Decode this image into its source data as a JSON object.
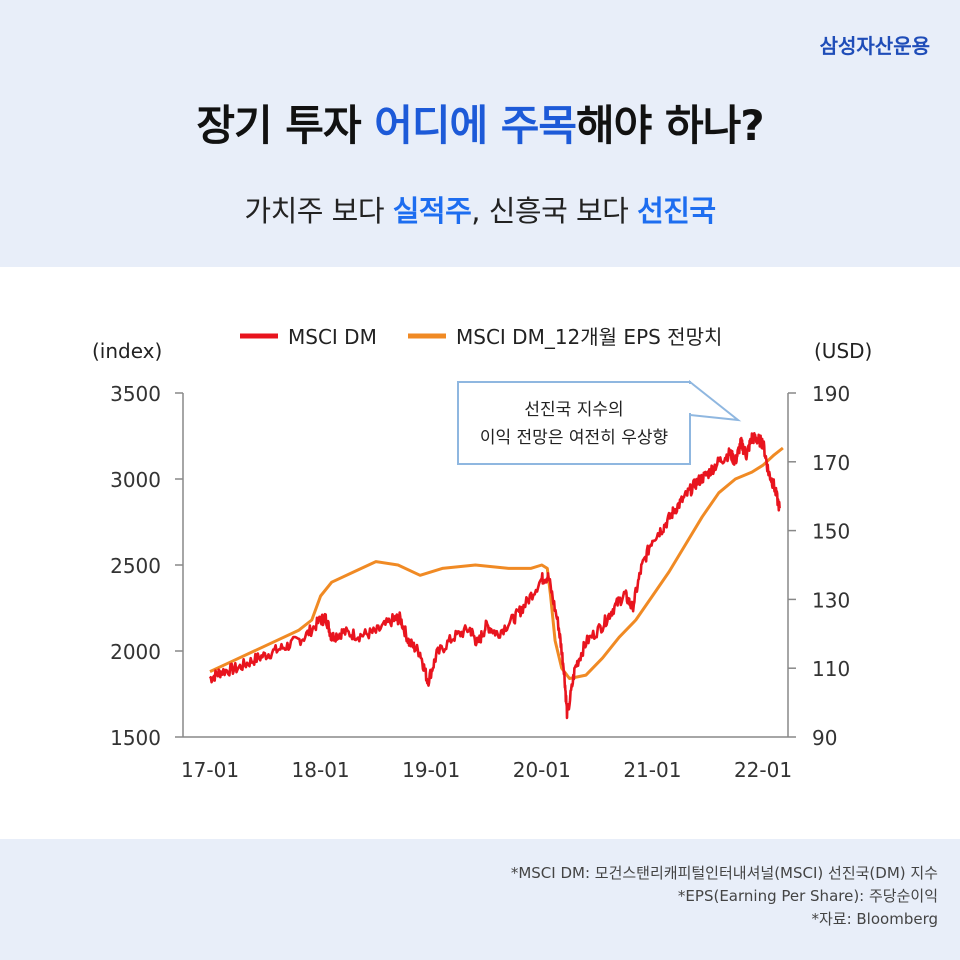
{
  "brand": "삼성자산운용",
  "title": {
    "p1": "장기 투자 ",
    "p2": "어디에 주목",
    "p3": "해야 하나?"
  },
  "subtitle": {
    "p1": "가치주 보다 ",
    "p2": "실적주",
    "p3": ", 신흥국 보다 ",
    "p4": "선진국"
  },
  "callout": {
    "line1": "선진국 지수의",
    "line2": "이익 전망은 여전히 우상향"
  },
  "notes": [
    "*MSCI DM: 모건스탠리캐피털인터내셔널(MSCI) 선진국(DM) 지수",
    "*EPS(Earning Per Share): 주당순이익",
    "*자료: Bloomberg"
  ],
  "colors": {
    "msci": "#e8141e",
    "eps": "#f08a24",
    "accent": "#1d5ad8",
    "callout_border": "#8fb7e0"
  },
  "chart_data": {
    "type": "line",
    "left_axis_label": "(index)",
    "right_axis_label": "(USD)",
    "ylim_left": [
      1500,
      3500
    ],
    "ylim_right": [
      90,
      190
    ],
    "yticks_left": [
      "3500",
      "3000",
      "2500",
      "2000",
      "1500"
    ],
    "yticks_right": [
      "190",
      "170",
      "150",
      "130",
      "110",
      "90"
    ],
    "x_ticks": [
      {
        "label": "17-01",
        "t": 2017.0
      },
      {
        "label": "18-01",
        "t": 2018.0
      },
      {
        "label": "19-01",
        "t": 2019.0
      },
      {
        "label": "20-01",
        "t": 2020.0
      },
      {
        "label": "21-01",
        "t": 2021.0
      },
      {
        "label": "22-01",
        "t": 2022.0
      }
    ],
    "xlim": [
      2017.0,
      2022.2
    ],
    "series": [
      {
        "name": "MSCI DM",
        "axis": "left",
        "points": [
          [
            2017.0,
            1840
          ],
          [
            2017.1,
            1880
          ],
          [
            2017.25,
            1900
          ],
          [
            2017.4,
            1950
          ],
          [
            2017.55,
            1990
          ],
          [
            2017.7,
            2030
          ],
          [
            2017.85,
            2080
          ],
          [
            2018.0,
            2180
          ],
          [
            2018.05,
            2190
          ],
          [
            2018.1,
            2080
          ],
          [
            2018.2,
            2110
          ],
          [
            2018.35,
            2090
          ],
          [
            2018.5,
            2110
          ],
          [
            2018.65,
            2180
          ],
          [
            2018.72,
            2190
          ],
          [
            2018.8,
            2050
          ],
          [
            2018.9,
            1990
          ],
          [
            2018.97,
            1820
          ],
          [
            2019.05,
            1980
          ],
          [
            2019.2,
            2080
          ],
          [
            2019.35,
            2130
          ],
          [
            2019.42,
            2040
          ],
          [
            2019.5,
            2150
          ],
          [
            2019.6,
            2100
          ],
          [
            2019.75,
            2190
          ],
          [
            2019.85,
            2270
          ],
          [
            2020.0,
            2420
          ],
          [
            2020.06,
            2430
          ],
          [
            2020.15,
            2150
          ],
          [
            2020.2,
            1900
          ],
          [
            2020.23,
            1620
          ],
          [
            2020.3,
            1900
          ],
          [
            2020.4,
            2050
          ],
          [
            2020.55,
            2150
          ],
          [
            2020.65,
            2250
          ],
          [
            2020.75,
            2330
          ],
          [
            2020.82,
            2250
          ],
          [
            2020.9,
            2480
          ],
          [
            2021.0,
            2650
          ],
          [
            2021.1,
            2720
          ],
          [
            2021.2,
            2820
          ],
          [
            2021.3,
            2900
          ],
          [
            2021.4,
            2980
          ],
          [
            2021.5,
            3030
          ],
          [
            2021.6,
            3100
          ],
          [
            2021.7,
            3150
          ],
          [
            2021.75,
            3100
          ],
          [
            2021.8,
            3210
          ],
          [
            2021.85,
            3140
          ],
          [
            2021.9,
            3240
          ],
          [
            2021.95,
            3230
          ],
          [
            2022.0,
            3210
          ],
          [
            2022.05,
            3040
          ],
          [
            2022.1,
            2960
          ],
          [
            2022.15,
            2830
          ]
        ]
      },
      {
        "name": "MSCI DM_12개월 EPS 전망치",
        "axis": "right",
        "points": [
          [
            2017.0,
            109
          ],
          [
            2017.2,
            112
          ],
          [
            2017.4,
            115
          ],
          [
            2017.6,
            118
          ],
          [
            2017.8,
            121
          ],
          [
            2017.92,
            124
          ],
          [
            2018.0,
            131
          ],
          [
            2018.1,
            135
          ],
          [
            2018.3,
            138
          ],
          [
            2018.5,
            141
          ],
          [
            2018.7,
            140
          ],
          [
            2018.9,
            137
          ],
          [
            2019.1,
            139
          ],
          [
            2019.4,
            140
          ],
          [
            2019.7,
            139
          ],
          [
            2019.9,
            139
          ],
          [
            2020.0,
            140
          ],
          [
            2020.05,
            139
          ],
          [
            2020.08,
            131
          ],
          [
            2020.12,
            118
          ],
          [
            2020.18,
            110
          ],
          [
            2020.25,
            107
          ],
          [
            2020.4,
            108
          ],
          [
            2020.55,
            113
          ],
          [
            2020.7,
            119
          ],
          [
            2020.85,
            124
          ],
          [
            2021.0,
            131
          ],
          [
            2021.15,
            138
          ],
          [
            2021.3,
            146
          ],
          [
            2021.45,
            154
          ],
          [
            2021.6,
            161
          ],
          [
            2021.75,
            165
          ],
          [
            2021.9,
            167
          ],
          [
            2022.0,
            169
          ],
          [
            2022.1,
            172
          ],
          [
            2022.18,
            174
          ]
        ]
      }
    ]
  }
}
